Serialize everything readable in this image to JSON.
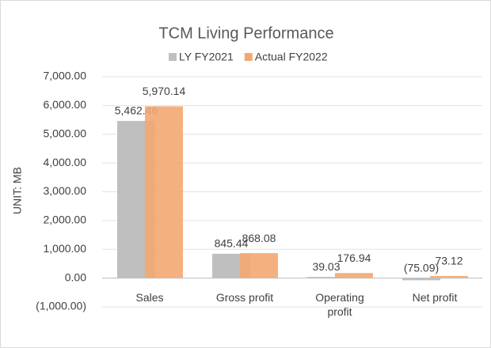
{
  "chart_data": {
    "type": "bar",
    "title": "TCM Living Performance",
    "y_label": "UNIT: MB",
    "categories": [
      "Sales",
      "Gross profit",
      "Operating profit",
      "Net profit"
    ],
    "series": [
      {
        "name": "LY FY2021",
        "color": "#bfbfbf",
        "values": [
          5462.46,
          845.44,
          39.03,
          -75.09
        ],
        "value_labels": [
          "5,462.46",
          "845.44",
          "39.03",
          "(75.09)"
        ]
      },
      {
        "name": "Actual FY2022",
        "color": "#f4a772",
        "values": [
          5970.14,
          868.08,
          176.94,
          73.12
        ],
        "value_labels": [
          "5,970.14",
          "868.08",
          "176.94",
          "73.12"
        ]
      }
    ],
    "ylim": [
      -1000,
      7000
    ],
    "yticks": [
      {
        "value": -1000,
        "label": "(1,000.00)"
      },
      {
        "value": 0,
        "label": "0.00"
      },
      {
        "value": 1000,
        "label": "1,000.00"
      },
      {
        "value": 2000,
        "label": "2,000.00"
      },
      {
        "value": 3000,
        "label": "3,000.00"
      },
      {
        "value": 4000,
        "label": "4,000.00"
      },
      {
        "value": 5000,
        "label": "5,000.00"
      },
      {
        "value": 6000,
        "label": "6,000.00"
      },
      {
        "value": 7000,
        "label": "7,000.00"
      }
    ],
    "grid": true,
    "legend": "top"
  }
}
